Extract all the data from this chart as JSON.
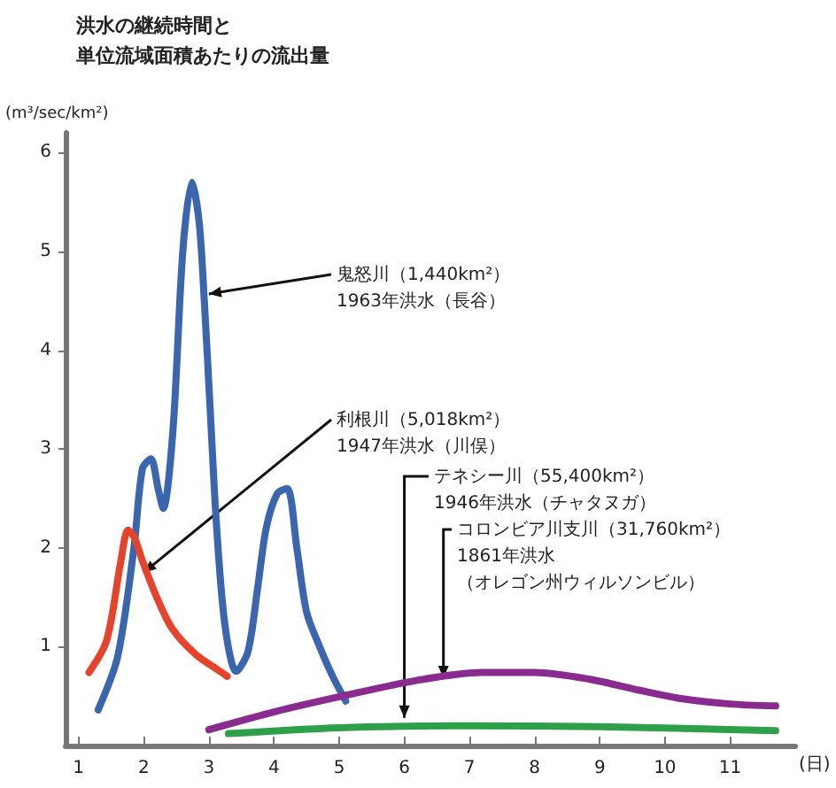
{
  "chart_data": {
    "type": "line",
    "title": "洪水の継続時間と",
    "subtitle": "単位流域面積あたりの流出量",
    "ylabel": "(m³/sec/km²)",
    "xlabel": "(日)",
    "xlim": [
      0.8,
      12
    ],
    "xticks": [
      1,
      2,
      3,
      4,
      5,
      6,
      7,
      8,
      9,
      10,
      11
    ],
    "ylim": [
      0,
      6.2
    ],
    "yticks": [
      1,
      2,
      3,
      4,
      5,
      6
    ],
    "grid": false,
    "marker": "none",
    "line_style": "solid",
    "series": [
      {
        "color": "#3a66b0",
        "x": [
          1.3,
          1.6,
          1.85,
          1.98,
          2.11,
          2.22,
          2.3,
          2.45,
          2.6,
          2.74,
          2.85,
          2.93,
          3.02,
          3.12,
          3.25,
          3.42,
          3.6,
          3.75,
          3.88,
          4.05,
          4.2,
          4.35,
          4.5,
          4.7,
          4.9,
          5.1
        ],
        "values": [
          0.36,
          0.9,
          2.0,
          2.8,
          2.9,
          2.6,
          2.4,
          3.2,
          5.0,
          5.7,
          5.3,
          4.5,
          3.4,
          2.2,
          1.2,
          0.75,
          0.95,
          1.6,
          2.2,
          2.55,
          2.6,
          2.0,
          1.35,
          1.0,
          0.7,
          0.45
        ]
      },
      {
        "color": "#e8432a",
        "x": [
          1.16,
          1.43,
          1.65,
          1.76,
          1.86,
          1.98,
          2.2,
          2.44,
          2.8,
          3.15,
          3.28
        ],
        "values": [
          0.74,
          1.06,
          1.87,
          2.18,
          2.1,
          1.87,
          1.5,
          1.18,
          0.92,
          0.76,
          0.7
        ]
      },
      {
        "color": "#8a2b8f",
        "x": [
          3.0,
          4.0,
          5.05,
          6.2,
          7.2,
          8.0,
          8.85,
          9.6,
          10.2,
          11.0,
          11.7
        ],
        "values": [
          0.16,
          0.34,
          0.5,
          0.66,
          0.74,
          0.74,
          0.67,
          0.56,
          0.48,
          0.42,
          0.4
        ]
      },
      {
        "color": "#2ea04a",
        "x": [
          3.3,
          5.0,
          7.0,
          9.0,
          11.7
        ],
        "values": [
          0.12,
          0.18,
          0.2,
          0.19,
          0.15
        ]
      }
    ],
    "annotations": [
      {
        "text": "鬼怒川（1,440km²）",
        "x": 3.0,
        "y": 4.57
      },
      "1963年洪水（長谷）",
      {
        "text": "利根川（5,018km²）",
        "x": 2.0,
        "y": 1.75
      },
      "1947年洪水（川俣）",
      {
        "text": "テネシー川（55,400km²）",
        "x": 6.0,
        "y": 0.28
      },
      "1946年洪水（チャタヌガ）",
      {
        "text": "コロンビア川支川（31,760km²）",
        "x": 6.6,
        "y": 0.68
      },
      "1861年洪水",
      "（オレゴン州ウィルソンビル）"
    ]
  }
}
